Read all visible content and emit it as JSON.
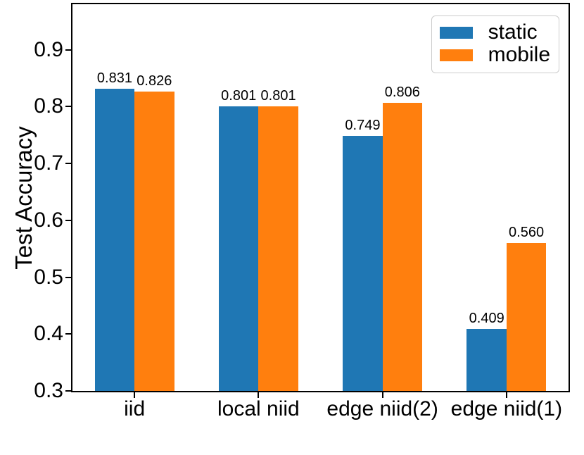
{
  "chart_data": {
    "type": "bar",
    "title": "",
    "xlabel": "",
    "ylabel": "Test Accuracy",
    "categories": [
      "iid",
      "local niid",
      "edge niid(2)",
      "edge niid(1)"
    ],
    "series": [
      {
        "name": "static",
        "color": "#1f77b4",
        "values": [
          0.831,
          0.801,
          0.749,
          0.409
        ]
      },
      {
        "name": "mobile",
        "color": "#ff7f0e",
        "values": [
          0.826,
          0.801,
          0.806,
          0.56
        ]
      }
    ],
    "value_label_decimals": 3,
    "ylim": [
      0.3,
      0.98
    ],
    "yticks": [
      0.3,
      0.4,
      0.5,
      0.6,
      0.7,
      0.8,
      0.9
    ],
    "ytick_labels": [
      "0.3",
      "0.4",
      "0.5",
      "0.6",
      "0.7",
      "0.8",
      "0.9"
    ],
    "legend": {
      "position": "upper right",
      "entries": [
        "static",
        "mobile"
      ]
    },
    "grid": false,
    "bar_group_width": 0.64,
    "axis_color": "#000000",
    "background_color": "#ffffff"
  }
}
